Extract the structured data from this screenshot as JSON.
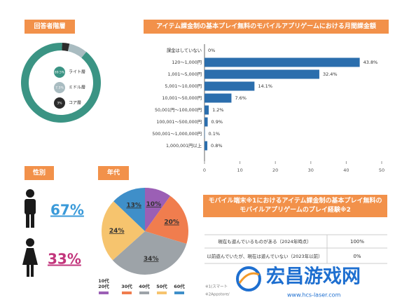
{
  "chart_data": [
    {
      "type": "donut",
      "title": "回答者階層",
      "categories": [
        "ライト層",
        "ミドル層",
        "コア層"
      ],
      "values": [
        89.5,
        7.5,
        3
      ],
      "value_labels": [
        "89.5%",
        "7.5%",
        "3%"
      ],
      "colors": [
        "#3b9484",
        "#a9bcc1",
        "#2b2b2b"
      ]
    },
    {
      "type": "bar",
      "orientation": "horizontal",
      "title": "アイテム課金制の基本プレイ無料のモバイルアプリゲームにおける月間課金額",
      "categories": [
        "課金はしていない",
        "120～1,000円",
        "1,001～5,000円",
        "5,001～10,000円",
        "10,001～50,000円",
        "50,001円～100,000円",
        "100,001～500,000円",
        "500,001～1,000,000円",
        "1,000,001円以上"
      ],
      "values": [
        0,
        43.8,
        32.4,
        14.1,
        7.6,
        1.2,
        0.9,
        0.1,
        0.8
      ],
      "value_labels": [
        "0%",
        "43.8%",
        "32.4%",
        "14.1%",
        "7.6%",
        "1.2%",
        "0.9%",
        "0.1%",
        "0.8%"
      ],
      "color": "#2b6ead",
      "xlim": [
        0,
        50
      ],
      "xticks": [
        0,
        10,
        20,
        30,
        40,
        50
      ]
    },
    {
      "type": "pie",
      "title": "年代",
      "categories": [
        "10代\n20代",
        "30代",
        "40代",
        "50代",
        "60代"
      ],
      "values": [
        10,
        20,
        34,
        24,
        13
      ],
      "value_labels": [
        "10%",
        "20%",
        "34%",
        "24%",
        "13%"
      ],
      "colors": [
        "#9b5fb5",
        "#f07d4e",
        "#9da3a8",
        "#f6c46e",
        "#3f8fc9"
      ]
    }
  ],
  "gender": {
    "title": "性別",
    "items": [
      {
        "label": "67%",
        "color": "#3a9ad9"
      },
      {
        "label": "33%",
        "color": "#c2357c"
      }
    ]
  },
  "table": {
    "title": "モバイル端末※1におけるアイテム課金制の基本プレイ無料のモバイルアプリゲームのプレイ経験※2",
    "rows": [
      [
        "現在も遊んでいるものがある（2024年時点）",
        "100%"
      ],
      [
        "以前遊んでいたが、現在は遊んでいない（2023年以前）",
        "0%"
      ]
    ],
    "footnotes": [
      "※1(スマート",
      "※2Appstore/"
    ]
  },
  "watermark": {
    "title": "宏昌游戏网",
    "url": "www.hcs-laser.com"
  }
}
